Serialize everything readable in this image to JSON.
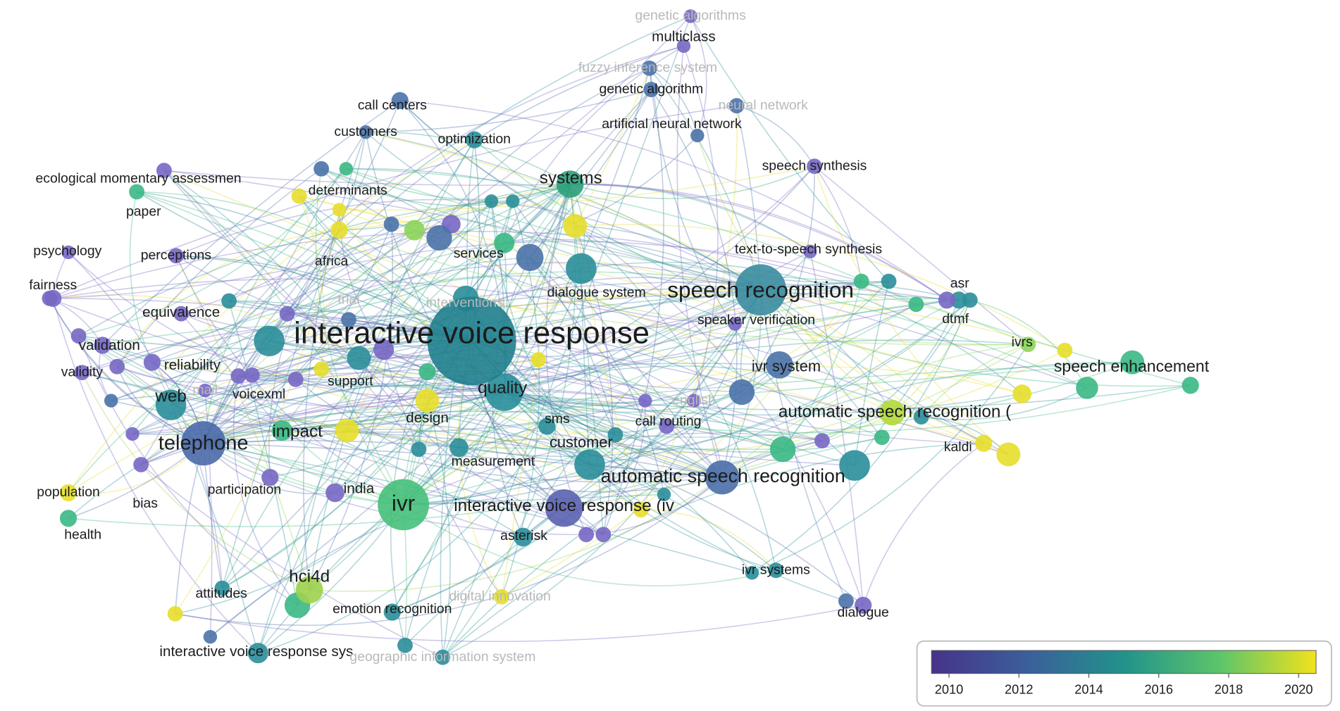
{
  "nodes": [
    {
      "label": "genetic algorithms"
    },
    {
      "label": "multiclass"
    },
    {
      "label": "fuzzy inference system"
    },
    {
      "label": "genetic algorithm"
    },
    {
      "label": "neural network"
    },
    {
      "label": "call centers"
    },
    {
      "label": "customers"
    },
    {
      "label": "optimization"
    },
    {
      "label": "artificial neural network"
    },
    {
      "label": "speech synthesis"
    },
    {
      "label": "ecological momentary assessmen"
    },
    {
      "label": "systems"
    },
    {
      "label": "determinants"
    },
    {
      "label": "paper"
    },
    {
      "label": "psychology"
    },
    {
      "label": "perceptions"
    },
    {
      "label": "africa"
    },
    {
      "label": "services"
    },
    {
      "label": "text-to-speech synthesis"
    },
    {
      "label": "fairness"
    },
    {
      "label": "asr"
    },
    {
      "label": "speech recognition"
    },
    {
      "label": "dialogue system"
    },
    {
      "label": "trial"
    },
    {
      "label": "interventions"
    },
    {
      "label": "equivalence"
    },
    {
      "label": "speaker verification"
    },
    {
      "label": "dtmf"
    },
    {
      "label": "interactive voice response"
    },
    {
      "label": "ivrs"
    },
    {
      "label": "validation"
    },
    {
      "label": "speech enhancement"
    },
    {
      "label": "ivr system"
    },
    {
      "label": "reliability"
    },
    {
      "label": "validity"
    },
    {
      "label": "support"
    },
    {
      "label": "voicexml"
    },
    {
      "label": "mail"
    },
    {
      "label": "quality"
    },
    {
      "label": "web"
    },
    {
      "label": "english"
    },
    {
      "label": "automatic speech recognition ("
    },
    {
      "label": "design"
    },
    {
      "label": "sms"
    },
    {
      "label": "call routing"
    },
    {
      "label": "telephone"
    },
    {
      "label": "impact"
    },
    {
      "label": "customer"
    },
    {
      "label": "kaldi"
    },
    {
      "label": "measurement"
    },
    {
      "label": "automatic speech recognition"
    },
    {
      "label": "population"
    },
    {
      "label": "participation"
    },
    {
      "label": "india"
    },
    {
      "label": "ivr"
    },
    {
      "label": "interactive voice response (iv"
    },
    {
      "label": "bias"
    },
    {
      "label": "health"
    },
    {
      "label": "asterisk"
    },
    {
      "label": "hci4d"
    },
    {
      "label": "ivr systems"
    },
    {
      "label": "attitudes"
    },
    {
      "label": "digital innovation"
    },
    {
      "label": "emotion recognition"
    },
    {
      "label": "dialogue"
    },
    {
      "label": "interactive voice response sys"
    },
    {
      "label": "geographic information system"
    }
  ],
  "colorbar": {
    "range": [
      2009.5,
      2020.5
    ],
    "ticks": [
      2010,
      2012,
      2014,
      2016,
      2018,
      2020
    ]
  }
}
